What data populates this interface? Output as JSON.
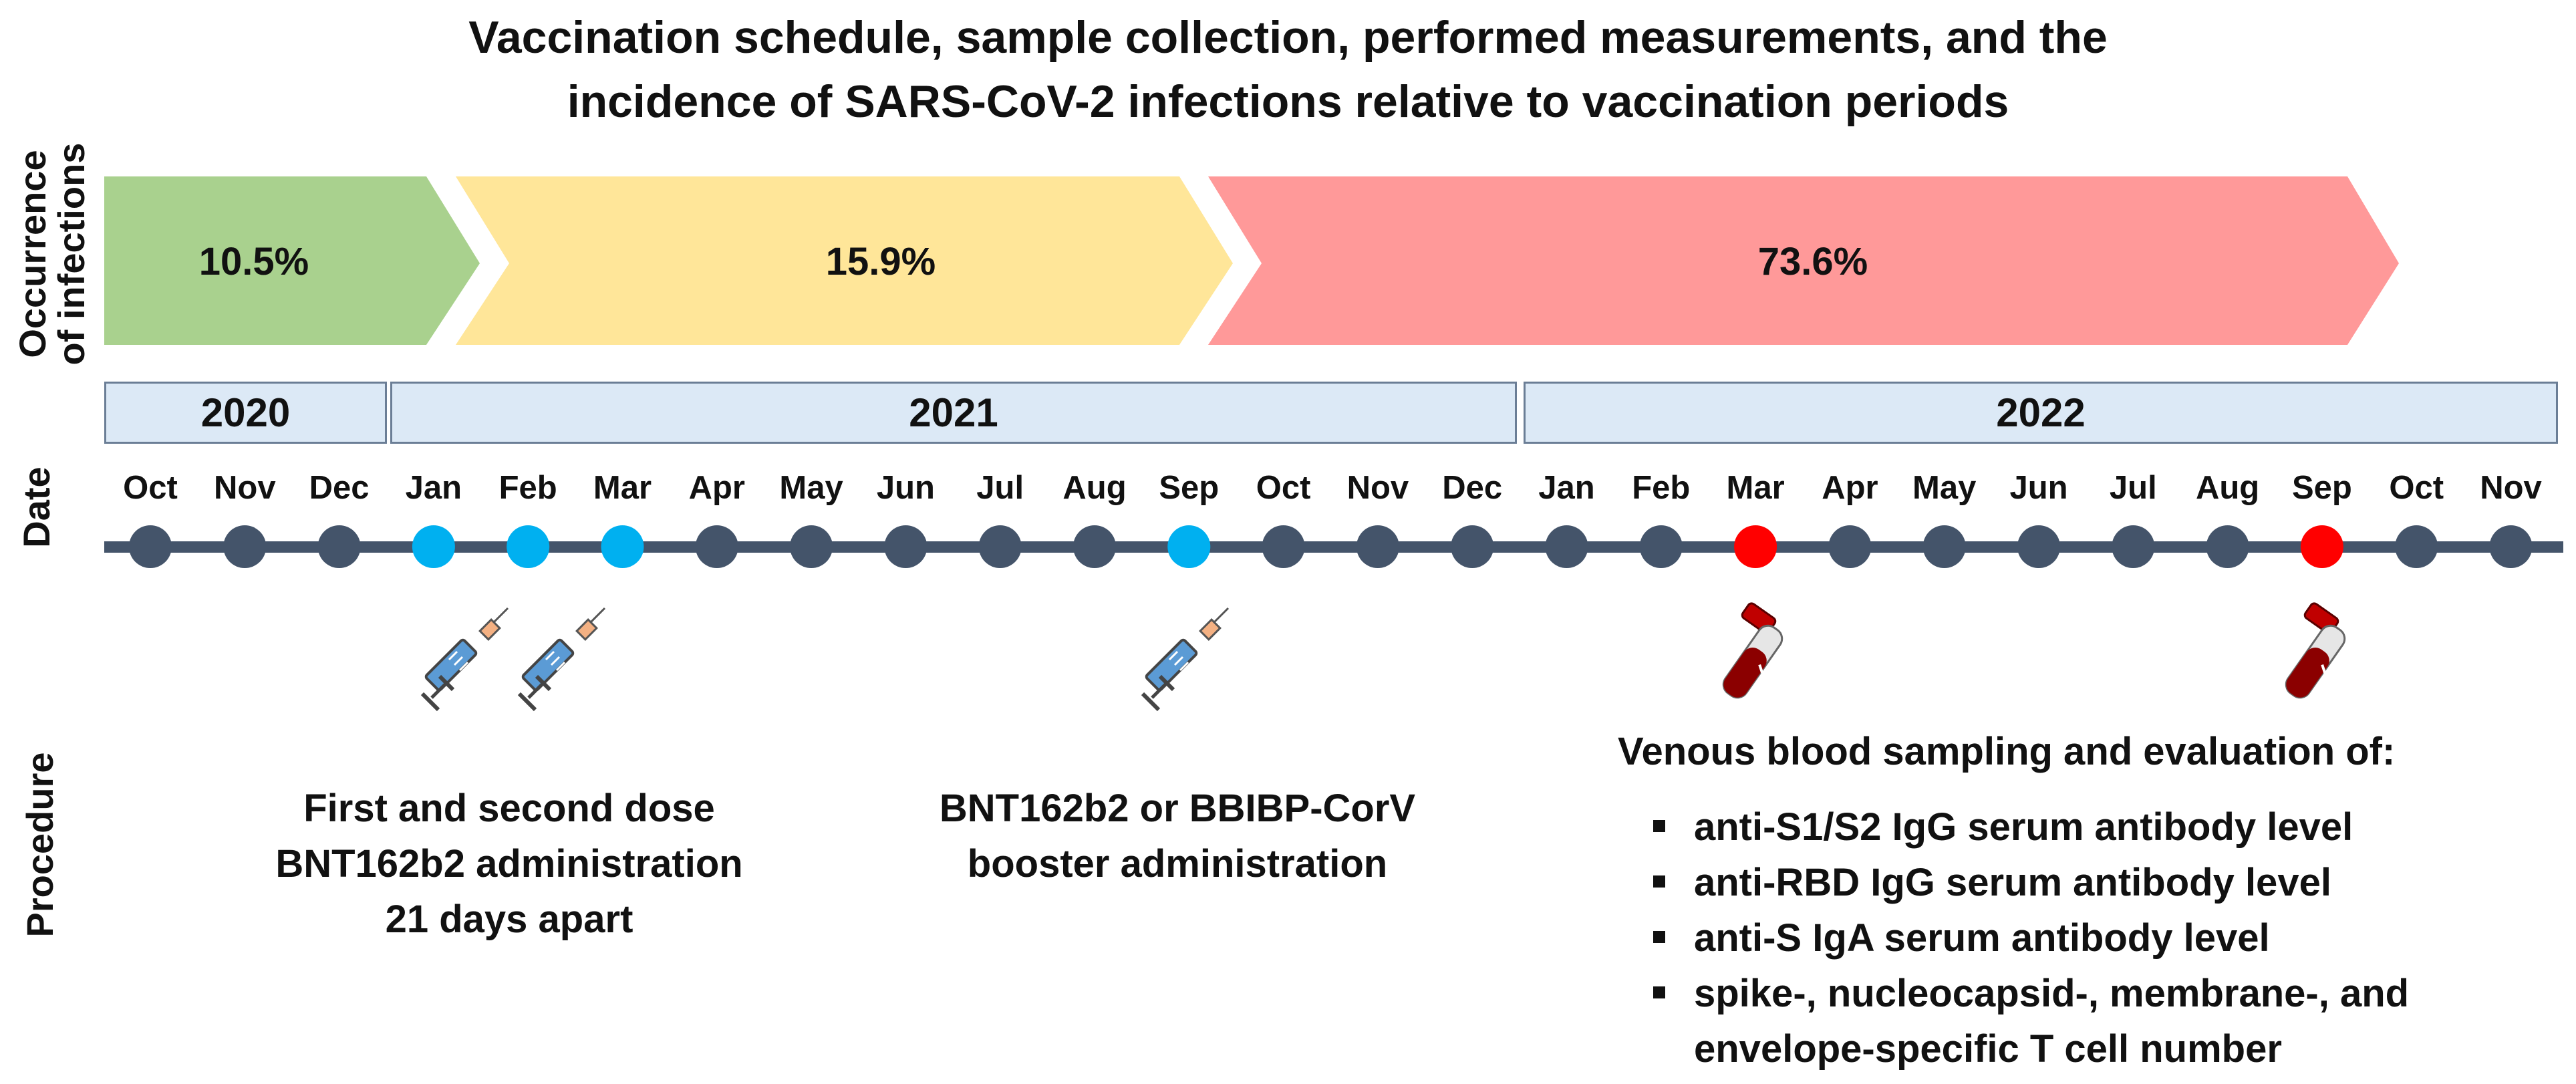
{
  "title": {
    "line1": "Vaccination schedule, sample collection, performed measurements, and the",
    "line2": "incidence of SARS-CoV-2 infections relative to vaccination periods"
  },
  "row_labels": {
    "infections_line1": "Occurrence",
    "infections_line2": "of infections",
    "date": "Date",
    "procedure": "Procedure"
  },
  "infection_periods": [
    {
      "value": "10.5%",
      "color": "#a9d18e"
    },
    {
      "value": "15.9%",
      "color": "#ffe699"
    },
    {
      "value": "73.6%",
      "color": "#ff9999"
    }
  ],
  "years": [
    "2020",
    "2021",
    "2022"
  ],
  "months": [
    "Oct",
    "Nov",
    "Dec",
    "Jan",
    "Feb",
    "Mar",
    "Apr",
    "May",
    "Jun",
    "Jul",
    "Aug",
    "Sep",
    "Oct",
    "Nov",
    "Dec",
    "Jan",
    "Feb",
    "Mar",
    "Apr",
    "May",
    "Jun",
    "Jul",
    "Aug",
    "Sep",
    "Oct",
    "Nov"
  ],
  "timeline_colors": {
    "line": "#44546a",
    "default_dot": "#44546a",
    "vaccination_dot": "#00b0f0",
    "sampling_dot": "#ff0000"
  },
  "vaccination_months": [
    3,
    4,
    5,
    11
  ],
  "sampling_months": [
    17,
    23
  ],
  "procedures": {
    "primary_line1": "First and second dose",
    "primary_line2": "BNT162b2 administration",
    "primary_line3": "21 days apart",
    "booster_line1": "BNT162b2 or BBIBP-CorV",
    "booster_line2": "booster administration",
    "sampling_title": "Venous blood sampling and evaluation of:",
    "measurements": [
      "anti-S1/S2 IgG serum antibody level",
      "anti-RBD IgG serum antibody level",
      "anti-S IgA serum antibody level",
      "spike-, nucleocapsid-, membrane-, and",
      "envelope-specific T cell number"
    ]
  },
  "icons": {
    "vaccination": "syringe-icon",
    "sampling": "blood-tube-icon"
  }
}
